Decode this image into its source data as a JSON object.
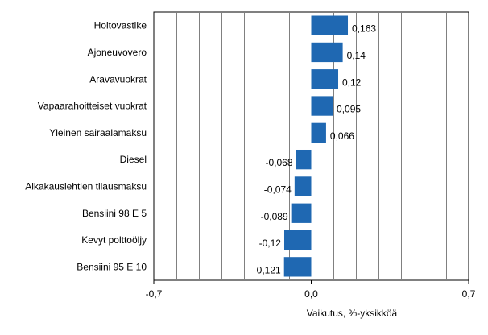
{
  "chart_data": {
    "type": "bar",
    "orientation": "horizontal",
    "categories": [
      "Hoitovastike",
      "Ajoneuvovero",
      "Aravavuokrat",
      "Vapaarahoitteiset vuokrat",
      "Yleinen sairaalamaksu",
      "Diesel",
      "Aikakauslehtien tilausmaksu",
      "Bensiini 98 E 5",
      "Kevyt polttoöljy",
      "Bensiini 95 E 10"
    ],
    "values": [
      0.163,
      0.14,
      0.12,
      0.095,
      0.066,
      -0.068,
      -0.074,
      -0.089,
      -0.12,
      -0.121
    ],
    "value_labels": [
      "0,163",
      "0,14",
      "0,12",
      "0,095",
      "0,066",
      "-0,068",
      "-0,074",
      "-0,089",
      "-0,12",
      "-0,121"
    ],
    "xlim": [
      -0.7,
      0.7
    ],
    "x_ticks": [
      -0.7,
      0.0,
      0.7
    ],
    "x_tick_labels": [
      "-0,7",
      "0,0",
      "0,7"
    ],
    "grid_step": 0.1,
    "grid": true,
    "xlabel": "Vaikutus, %-yksikköä",
    "bar_color": "#1f68b2",
    "grid_color": "#808080",
    "axis_color": "#000000"
  }
}
